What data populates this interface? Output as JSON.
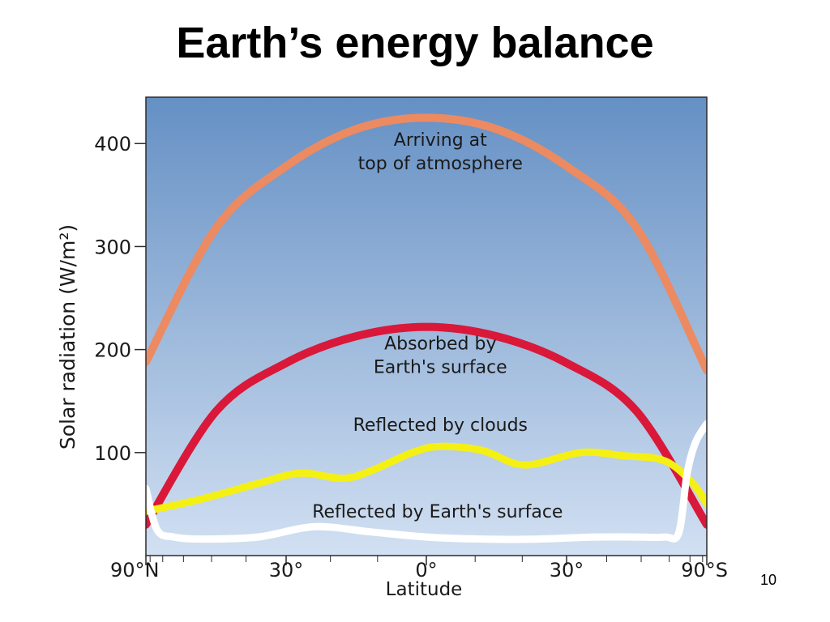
{
  "slide": {
    "title": "Earth’s energy balance",
    "page_number": "10"
  },
  "chart_data": {
    "type": "line",
    "xlabel": "Latitude",
    "ylabel": "Solar radiation (W/m²)",
    "x_tick_labels": [
      "90°N",
      "30°",
      "0°",
      "30°",
      "90°S"
    ],
    "x_tick_positions": [
      -1,
      -0.5,
      0,
      0.5,
      1
    ],
    "minor_ticks_sin_lat": [
      -0.985,
      -0.94,
      -0.866,
      -0.766,
      -0.643,
      -0.342,
      -0.174,
      0.174,
      0.342,
      0.643,
      0.766,
      0.866,
      0.94,
      0.985
    ],
    "y_ticks": [
      100,
      200,
      300,
      400
    ],
    "ylim": [
      0,
      445
    ],
    "grid": false,
    "background_gradient": [
      "#6590c4",
      "#d2e0f2"
    ],
    "series": [
      {
        "name": "Arriving at top of atmosphere",
        "color": "#ec8a62",
        "x": [
          -1,
          -0.75,
          -0.5,
          -0.25,
          0,
          0.25,
          0.5,
          0.75,
          1
        ],
        "y": [
          188,
          318,
          378,
          414,
          425,
          414,
          378,
          318,
          180
        ]
      },
      {
        "name": "Absorbed by Earth's surface",
        "color": "#d9183a",
        "x": [
          -1,
          -0.75,
          -0.5,
          -0.25,
          0,
          0.25,
          0.5,
          0.75,
          1
        ],
        "y": [
          30,
          140,
          187,
          213,
          222,
          213,
          187,
          140,
          30
        ]
      },
      {
        "name": "Reflected by clouds",
        "color": "#f5f014",
        "x": [
          -1,
          -0.8,
          -0.6,
          -0.45,
          -0.3,
          -0.2,
          -0.05,
          0.05,
          0.2,
          0.35,
          0.55,
          0.7,
          0.85,
          0.95,
          1
        ],
        "y": [
          43,
          55,
          70,
          80,
          75,
          82,
          100,
          106,
          102,
          88,
          100,
          97,
          92,
          70,
          50
        ]
      },
      {
        "name": "Reflected by Earth's surface",
        "color": "#ffffff",
        "x": [
          -1,
          -0.96,
          -0.9,
          -0.8,
          -0.6,
          -0.4,
          -0.2,
          0,
          0.2,
          0.4,
          0.6,
          0.75,
          0.85,
          0.9,
          0.93,
          0.96,
          1
        ],
        "y": [
          65,
          25,
          18,
          16,
          18,
          28,
          23,
          18,
          16,
          16,
          18,
          18,
          18,
          22,
          80,
          110,
          128
        ]
      }
    ],
    "annotations": [
      {
        "lines": [
          "Arriving at",
          "top of atmosphere"
        ],
        "x": 0.05,
        "y": 398
      },
      {
        "lines": [
          "Absorbed by",
          "Earth's surface"
        ],
        "x": 0.05,
        "y": 200
      },
      {
        "lines": [
          "Reflected by clouds"
        ],
        "x": 0.05,
        "y": 121
      },
      {
        "lines": [
          "Reflected by Earth's surface"
        ],
        "x": 0.04,
        "y": 37
      }
    ]
  }
}
